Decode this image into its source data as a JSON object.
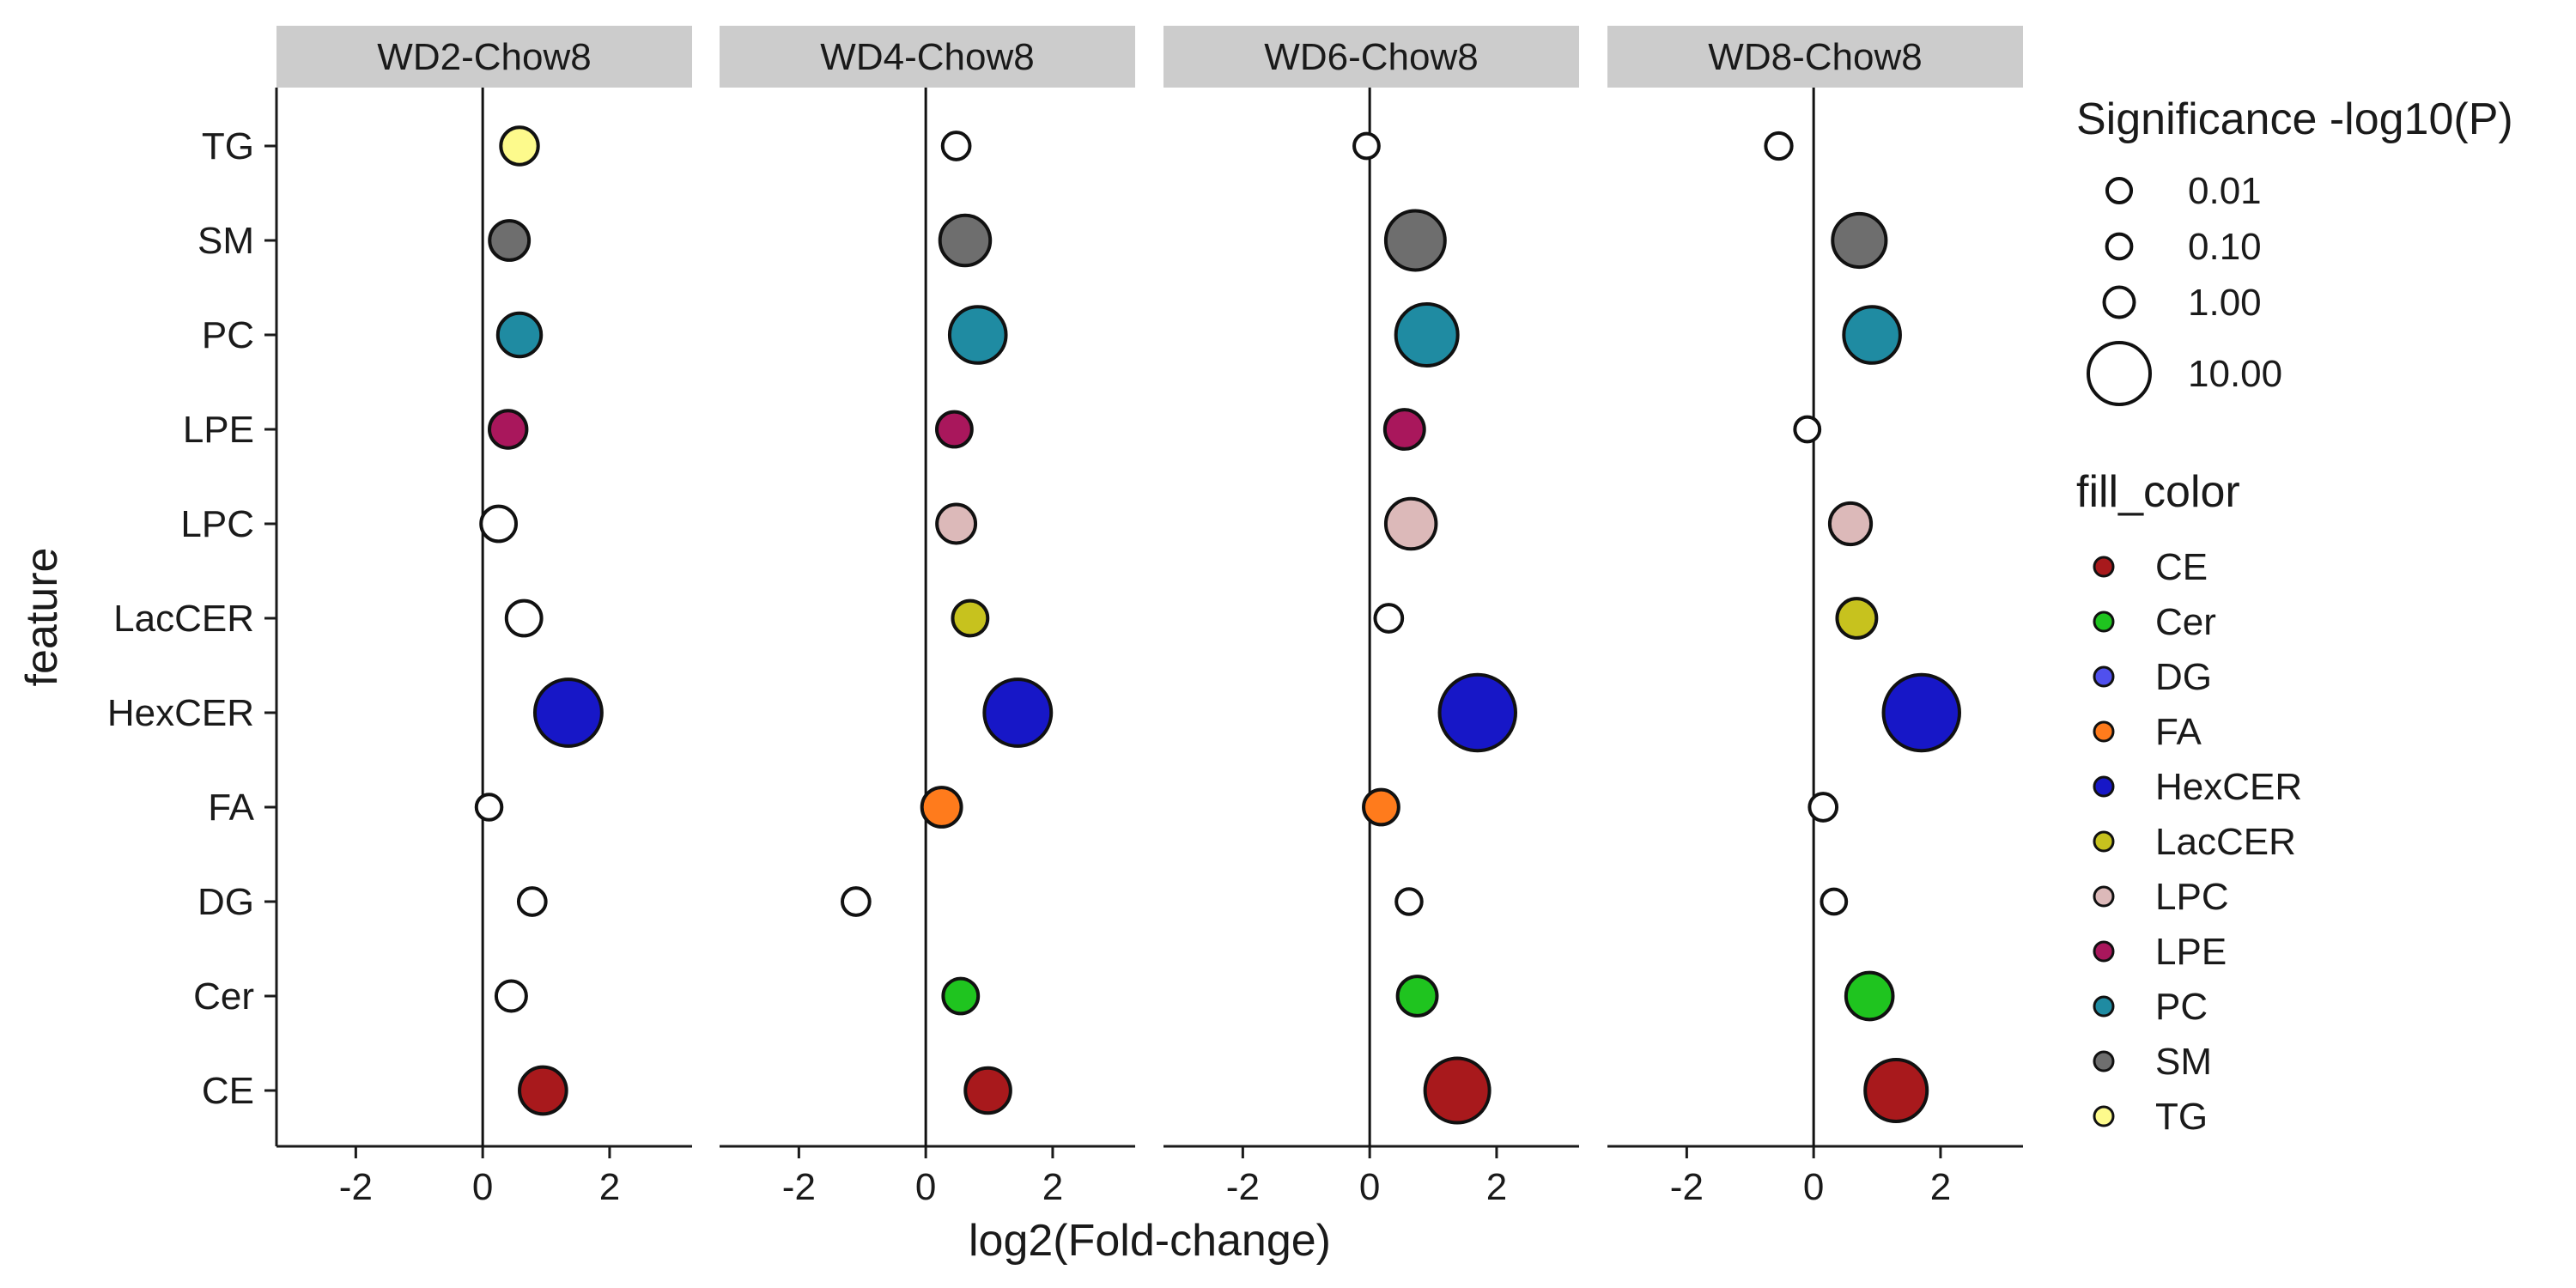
{
  "chart_data": {
    "type": "scatter",
    "title": "",
    "xlabel": "log2(Fold-change)",
    "ylabel": "feature",
    "xlim": [
      -3.25,
      3.3
    ],
    "x_ticks": [
      -2,
      0,
      2
    ],
    "categories": [
      "CE",
      "Cer",
      "DG",
      "FA",
      "HexCER",
      "LacCER",
      "LPC",
      "LPE",
      "PC",
      "SM",
      "TG"
    ],
    "panels": [
      {
        "label": "WD2-Chow8",
        "points": [
          {
            "feature": "CE",
            "x": 0.95,
            "p": 5.0,
            "filled": true
          },
          {
            "feature": "Cer",
            "x": 0.45,
            "p": 1.0,
            "filled": false
          },
          {
            "feature": "DG",
            "x": 0.78,
            "p": 0.5,
            "filled": false
          },
          {
            "feature": "FA",
            "x": 0.1,
            "p": 0.2,
            "filled": false
          },
          {
            "feature": "HexCER",
            "x": 1.35,
            "p": 12.0,
            "filled": true
          },
          {
            "feature": "LacCER",
            "x": 0.65,
            "p": 2.0,
            "filled": false
          },
          {
            "feature": "LPC",
            "x": 0.25,
            "p": 2.0,
            "filled": false
          },
          {
            "feature": "LPE",
            "x": 0.4,
            "p": 2.5,
            "filled": true
          },
          {
            "feature": "PC",
            "x": 0.58,
            "p": 4.0,
            "filled": true
          },
          {
            "feature": "SM",
            "x": 0.42,
            "p": 3.0,
            "filled": true
          },
          {
            "feature": "TG",
            "x": 0.58,
            "p": 2.5,
            "filled": true
          }
        ]
      },
      {
        "label": "WD4-Chow8",
        "points": [
          {
            "feature": "CE",
            "x": 0.98,
            "p": 4.5,
            "filled": true
          },
          {
            "feature": "Cer",
            "x": 0.55,
            "p": 2.0,
            "filled": true
          },
          {
            "feature": "DG",
            "x": -1.1,
            "p": 0.5,
            "filled": false
          },
          {
            "feature": "FA",
            "x": 0.25,
            "p": 3.0,
            "filled": true
          },
          {
            "feature": "HexCER",
            "x": 1.45,
            "p": 12.0,
            "filled": true
          },
          {
            "feature": "LacCER",
            "x": 0.7,
            "p": 2.0,
            "filled": true
          },
          {
            "feature": "LPC",
            "x": 0.48,
            "p": 2.8,
            "filled": true
          },
          {
            "feature": "LPE",
            "x": 0.45,
            "p": 2.0,
            "filled": true
          },
          {
            "feature": "PC",
            "x": 0.82,
            "p": 8.0,
            "filled": true
          },
          {
            "feature": "SM",
            "x": 0.62,
            "p": 6.0,
            "filled": true
          },
          {
            "feature": "TG",
            "x": 0.48,
            "p": 0.5,
            "filled": false
          }
        ]
      },
      {
        "label": "WD6-Chow8",
        "points": [
          {
            "feature": "CE",
            "x": 1.38,
            "p": 11.0,
            "filled": true
          },
          {
            "feature": "Cer",
            "x": 0.75,
            "p": 3.0,
            "filled": true
          },
          {
            "feature": "DG",
            "x": 0.62,
            "p": 0.2,
            "filled": false
          },
          {
            "feature": "FA",
            "x": 0.18,
            "p": 2.0,
            "filled": true
          },
          {
            "feature": "HexCER",
            "x": 1.7,
            "p": 16.0,
            "filled": true
          },
          {
            "feature": "LacCER",
            "x": 0.3,
            "p": 0.5,
            "filled": false
          },
          {
            "feature": "LPC",
            "x": 0.65,
            "p": 6.0,
            "filled": true
          },
          {
            "feature": "LPE",
            "x": 0.55,
            "p": 3.0,
            "filled": true
          },
          {
            "feature": "PC",
            "x": 0.9,
            "p": 10.0,
            "filled": true
          },
          {
            "feature": "SM",
            "x": 0.72,
            "p": 9.0,
            "filled": true
          },
          {
            "feature": "TG",
            "x": -0.05,
            "p": 0.1,
            "filled": false
          }
        ]
      },
      {
        "label": "WD8-Chow8",
        "points": [
          {
            "feature": "CE",
            "x": 1.3,
            "p": 10.0,
            "filled": true
          },
          {
            "feature": "Cer",
            "x": 0.88,
            "p": 5.0,
            "filled": true
          },
          {
            "feature": "DG",
            "x": 0.32,
            "p": 0.1,
            "filled": false
          },
          {
            "feature": "FA",
            "x": 0.15,
            "p": 0.5,
            "filled": false
          },
          {
            "feature": "HexCER",
            "x": 1.7,
            "p": 16.0,
            "filled": true
          },
          {
            "feature": "LacCER",
            "x": 0.68,
            "p": 3.0,
            "filled": true
          },
          {
            "feature": "LPC",
            "x": 0.58,
            "p": 3.5,
            "filled": true
          },
          {
            "feature": "LPE",
            "x": -0.1,
            "p": 0.1,
            "filled": false
          },
          {
            "feature": "PC",
            "x": 0.92,
            "p": 8.0,
            "filled": true
          },
          {
            "feature": "SM",
            "x": 0.72,
            "p": 7.0,
            "filled": true
          },
          {
            "feature": "TG",
            "x": -0.55,
            "p": 0.3,
            "filled": false
          }
        ]
      }
    ],
    "size_legend": {
      "title": "Significance -log10(P)",
      "entries": [
        {
          "value": 0.01,
          "label": "0.01"
        },
        {
          "value": 0.1,
          "label": "0.10"
        },
        {
          "value": 1.0,
          "label": "1.00"
        },
        {
          "value": 10.0,
          "label": "10.00"
        }
      ]
    },
    "fill_legend": {
      "title": "fill_color",
      "entries": [
        {
          "label": "CE",
          "color": "#a8191c"
        },
        {
          "label": "Cer",
          "color": "#1fc41f"
        },
        {
          "label": "DG",
          "color": "#5050ee"
        },
        {
          "label": "FA",
          "color": "#ff7b1c"
        },
        {
          "label": "HexCER",
          "color": "#1717c7"
        },
        {
          "label": "LacCER",
          "color": "#c7c21e"
        },
        {
          "label": "LPC",
          "color": "#dcb9b9"
        },
        {
          "label": "LPE",
          "color": "#a9175c"
        },
        {
          "label": "PC",
          "color": "#1f8ba2"
        },
        {
          "label": "SM",
          "color": "#6e6e6e"
        },
        {
          "label": "TG",
          "color": "#fdfa8c"
        }
      ]
    },
    "legend_position": "right",
    "grid": false
  }
}
